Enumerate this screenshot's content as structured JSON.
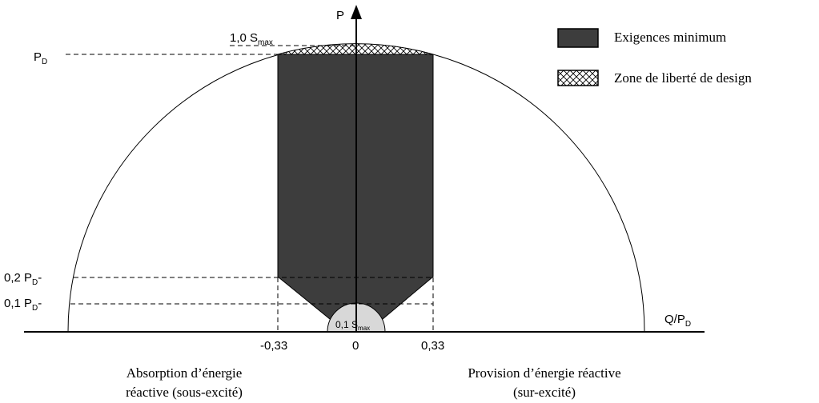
{
  "colors": {
    "minimum_fill": "#3d3d3d",
    "small_circle_fill": "#d8d8d8",
    "line": "#000000",
    "background": "#ffffff"
  },
  "axes": {
    "y_label": "P",
    "x_label_main": "Q/P",
    "x_label_sub": "D"
  },
  "annotations": {
    "smax_prefix": "1,0 S",
    "smax_sub": "max",
    "pd_main": "P",
    "pd_sub": "D",
    "p02_main": "0,2 P",
    "p02_sub": "D",
    "p02_dot": "-",
    "p01_main": "0,1 P",
    "p01_sub": "D",
    "p01_dot": "-",
    "small_circle_prefix": "0,1 S",
    "small_circle_sub": "max"
  },
  "ticks": {
    "neg": "-0,33",
    "zero": "0",
    "pos": "0,33"
  },
  "legend": {
    "minimum": "Exigences minimum",
    "freedom": "Zone de liberté de design"
  },
  "captions": {
    "left_line1": "Absorption d’énergie",
    "left_line2": "réactive (sous-excité)",
    "right_line1": "Provision d’énergie réactive",
    "right_line2": "(sur-excité)"
  }
}
